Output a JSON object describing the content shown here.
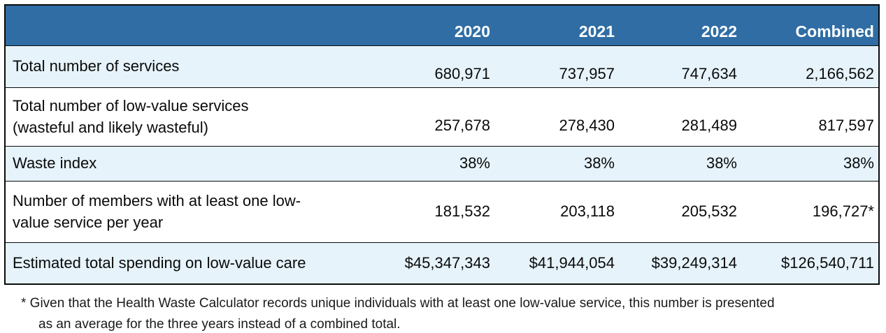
{
  "table": {
    "columns": [
      "2020",
      "2021",
      "2022",
      "Combined"
    ],
    "rows": [
      {
        "label": "Total number of services",
        "values": [
          "680,971",
          "737,957",
          "747,634",
          "2,166,562"
        ]
      },
      {
        "label": "Total number of low-value services\n(wasteful and likely wasteful)",
        "values": [
          "257,678",
          "278,430",
          "281,489",
          "817,597"
        ]
      },
      {
        "label": "Waste index",
        "values": [
          "38%",
          "38%",
          "38%",
          "38%"
        ]
      },
      {
        "label": "Number of members with at least one low-\nvalue service per year",
        "values": [
          "181,532",
          "203,118",
          "205,532",
          "196,727*"
        ]
      },
      {
        "label": "Estimated total spending on low-value care",
        "values": [
          "$45,347,343",
          "$41,944,054",
          "$39,249,314",
          "$126,540,711"
        ]
      }
    ]
  },
  "footnote": "* Given that the Health Waste Calculator records unique individuals with at least one low-value service, this number is presented\nas an average for the three years instead of a combined total.",
  "colors": {
    "header_bg": "#2F6DA4",
    "header_text": "#FFFFFF",
    "row_alt_bg": "#E6F3FB",
    "border": "#0A0A0A"
  }
}
